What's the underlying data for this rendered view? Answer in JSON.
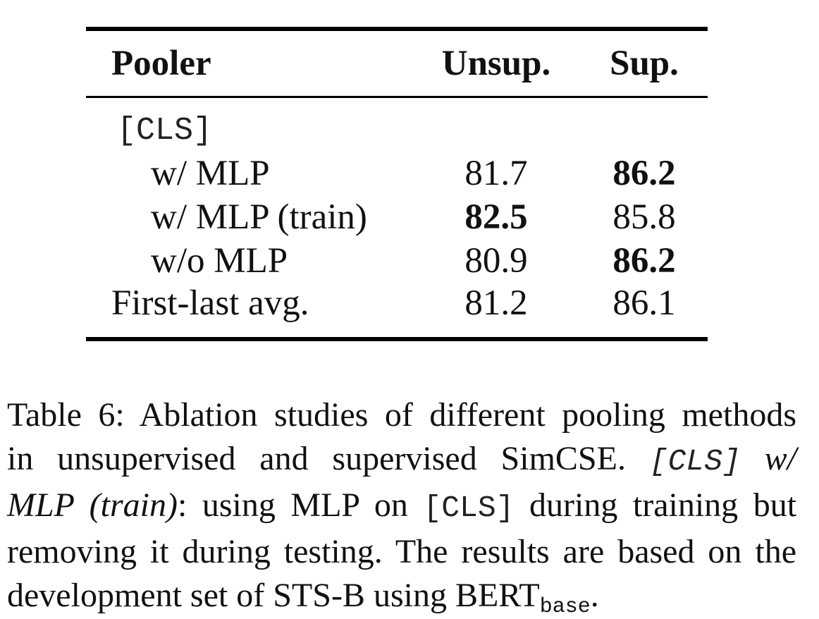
{
  "table": {
    "headers": {
      "pooler": "Pooler",
      "unsup": "Unsup.",
      "sup": "Sup."
    },
    "group_label": "[CLS]",
    "rows": [
      {
        "label": "w/ MLP",
        "unsup": "81.7",
        "sup": "86.2",
        "unsup_bold": false,
        "sup_bold": true
      },
      {
        "label": "w/ MLP (train)",
        "unsup": "82.5",
        "sup": "85.8",
        "unsup_bold": true,
        "sup_bold": false
      },
      {
        "label": "w/o MLP",
        "unsup": "80.9",
        "sup": "86.2",
        "unsup_bold": false,
        "sup_bold": true
      },
      {
        "label": "First-last avg.",
        "unsup": "81.2",
        "sup": "86.1",
        "unsup_bold": false,
        "sup_bold": false
      }
    ]
  },
  "caption": {
    "line1": "Table 6: Ablation studies of different pooling methods",
    "line2_a": "in unsupervised and supervised SimCSE.",
    "line2_b": "[CLS]",
    "line2_c": "w/",
    "line3_a": "MLP (train)",
    "line3_b": ": using MLP on",
    "line3_c": "[CLS]",
    "line3_d": "during training but",
    "line4": "removing it during testing. The results are based on the",
    "line5_a": "development set of STS-B using BERT",
    "line5_sub": "base",
    "line5_end": "."
  }
}
